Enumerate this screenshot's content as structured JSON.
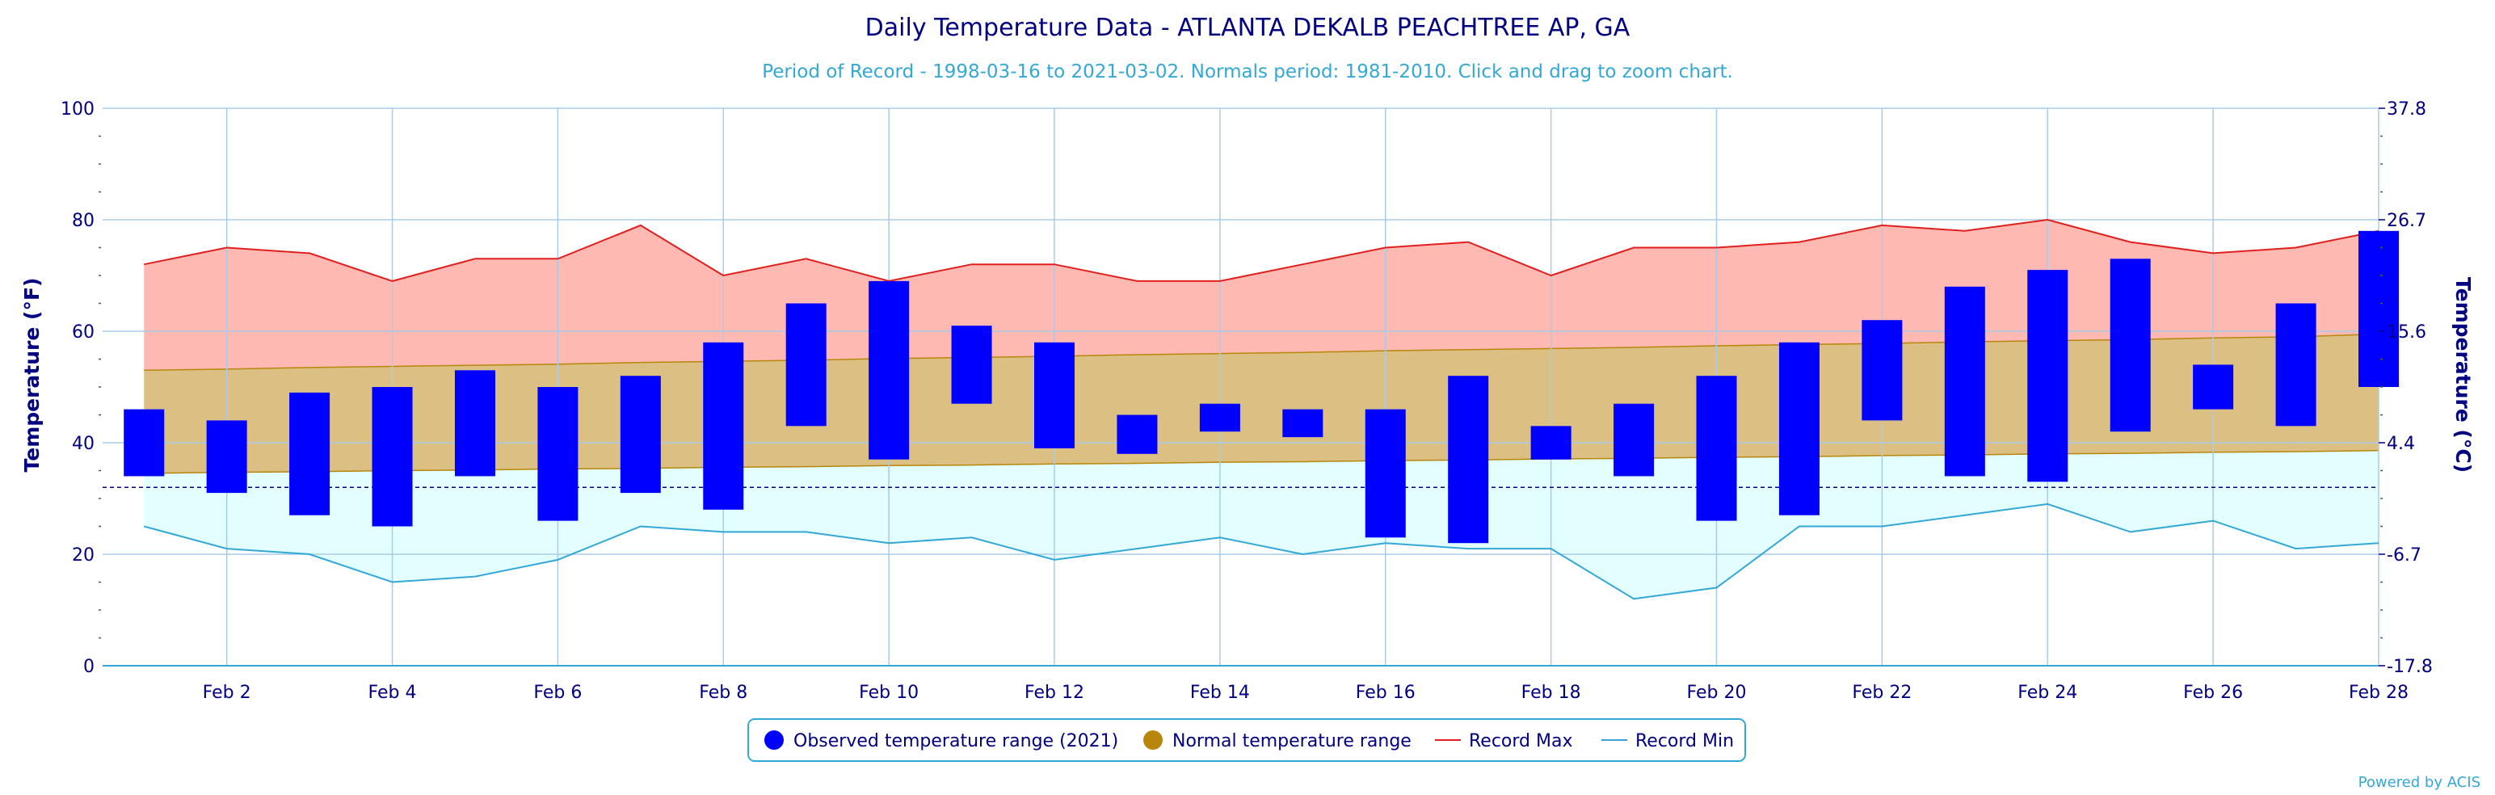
{
  "chart_data": {
    "type": "bar",
    "title": "Daily Temperature Data - ATLANTA DEKALB PEACHTREE AP, GA",
    "subtitle": "Period of Record - 1998-03-16 to 2021-03-02. Normals period: 1981-2010. Click and drag to zoom chart.",
    "ylabel": "Temperature (°F)",
    "y2label": "Temperature (°C)",
    "ylim": [
      0,
      100
    ],
    "yticks": [
      0,
      20,
      40,
      60,
      80,
      100
    ],
    "y2ticks": [
      "-17.8",
      "-6.7",
      "4.4",
      "15.6",
      "26.7",
      "37.8"
    ],
    "freezing_line": 32,
    "x": [
      1,
      2,
      3,
      4,
      5,
      6,
      7,
      8,
      9,
      10,
      11,
      12,
      13,
      14,
      15,
      16,
      17,
      18,
      19,
      20,
      21,
      22,
      23,
      24,
      25,
      26,
      27,
      28
    ],
    "xtick_labels": [
      "Feb 2",
      "Feb 4",
      "Feb 6",
      "Feb 8",
      "Feb 10",
      "Feb 12",
      "Feb 14",
      "Feb 16",
      "Feb 18",
      "Feb 20",
      "Feb 22",
      "Feb 24",
      "Feb 26",
      "Feb 28"
    ],
    "xtick_days": [
      2,
      4,
      6,
      8,
      10,
      12,
      14,
      16,
      18,
      20,
      22,
      24,
      26,
      28
    ],
    "series": [
      {
        "name": "Observed temperature range (2021)",
        "color": "#0000ff",
        "low": [
          34,
          31,
          27,
          25,
          34,
          26,
          31,
          28,
          43,
          37,
          47,
          39,
          38,
          42,
          41,
          23,
          22,
          37,
          34,
          26,
          27,
          44,
          34,
          33,
          42,
          46,
          43,
          50
        ],
        "high": [
          46,
          44,
          49,
          50,
          53,
          50,
          52,
          58,
          65,
          69,
          61,
          58,
          45,
          47,
          46,
          46,
          52,
          43,
          47,
          52,
          58,
          62,
          68,
          71,
          73,
          54,
          65,
          78
        ]
      },
      {
        "name": "Normal temperature range",
        "color": "#b8860b",
        "low": [
          34.5,
          34.7,
          34.8,
          35.0,
          35.1,
          35.3,
          35.4,
          35.6,
          35.7,
          35.9,
          36.0,
          36.2,
          36.3,
          36.5,
          36.6,
          36.8,
          36.9,
          37.1,
          37.2,
          37.4,
          37.5,
          37.7,
          37.8,
          38.0,
          38.1,
          38.3,
          38.4,
          38.6
        ],
        "high": [
          53.0,
          53.2,
          53.5,
          53.7,
          53.9,
          54.1,
          54.4,
          54.6,
          54.8,
          55.1,
          55.3,
          55.5,
          55.8,
          56.0,
          56.2,
          56.5,
          56.7,
          56.9,
          57.1,
          57.4,
          57.6,
          57.8,
          58.1,
          58.3,
          58.5,
          58.8,
          59.0,
          59.5
        ]
      },
      {
        "name": "Record Max",
        "color": "#e0201e",
        "values": [
          72,
          75,
          74,
          69,
          73,
          73,
          79,
          70,
          73,
          69,
          72,
          72,
          69,
          69,
          72,
          75,
          76,
          70,
          75,
          75,
          76,
          79,
          78,
          80,
          76,
          74,
          75,
          78
        ]
      },
      {
        "name": "Record Min",
        "color": "#33a8d6",
        "values": [
          25,
          21,
          20,
          15,
          16,
          19,
          25,
          24,
          24,
          22,
          23,
          19,
          21,
          23,
          20,
          22,
          21,
          21,
          12,
          14,
          25,
          25,
          27,
          29,
          24,
          26,
          21,
          22
        ]
      }
    ],
    "colors": {
      "record_band": "#ffb9b3",
      "normal_band": "#dcc083",
      "below_band": "#e2feff",
      "grid": "#a8cbe8",
      "axis": "#000080",
      "freezing": "#000080"
    },
    "legend": {
      "position": "bottom",
      "items": [
        {
          "label": "Observed temperature range (2021)",
          "color": "#0000ff",
          "shape": "circle"
        },
        {
          "label": "Normal temperature range",
          "color": "#b8860b",
          "shape": "circle"
        },
        {
          "label": "Record Max",
          "color": "#e0201e",
          "shape": "line"
        },
        {
          "label": "Record Min",
          "color": "#33a8d6",
          "shape": "line"
        }
      ]
    },
    "credit": "Powered by ACIS"
  }
}
